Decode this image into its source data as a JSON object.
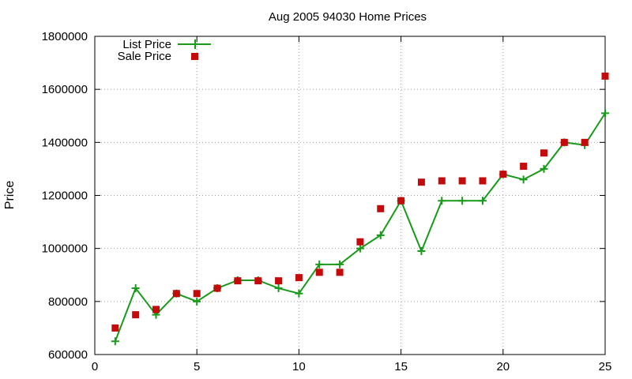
{
  "chart_data": {
    "type": "scatter",
    "title": "Aug 2005 94030 Home Prices",
    "xlabel": "",
    "ylabel": "Price",
    "xlim": [
      0,
      25
    ],
    "ylim": [
      600000,
      1800000
    ],
    "xticks": [
      0,
      5,
      10,
      15,
      20,
      25
    ],
    "yticks": [
      600000,
      800000,
      1000000,
      1200000,
      1400000,
      1600000,
      1800000
    ],
    "grid": true,
    "legend_position": "top-left",
    "series": [
      {
        "name": "List Price",
        "style": "line-with-plus-markers",
        "color": "#1a9a1a",
        "x": [
          1,
          2,
          3,
          4,
          5,
          6,
          7,
          8,
          9,
          10,
          11,
          12,
          13,
          14,
          15,
          16,
          17,
          18,
          19,
          20,
          21,
          22,
          23,
          24,
          25
        ],
        "y": [
          650000,
          850000,
          750000,
          830000,
          800000,
          850000,
          880000,
          880000,
          850000,
          830000,
          940000,
          940000,
          1000000,
          1050000,
          1180000,
          990000,
          1180000,
          1180000,
          1180000,
          1280000,
          1260000,
          1300000,
          1400000,
          1390000,
          1510000
        ]
      },
      {
        "name": "Sale Price",
        "style": "square-markers",
        "color": "#c40a0a",
        "x": [
          1,
          2,
          3,
          4,
          5,
          6,
          7,
          8,
          9,
          10,
          11,
          12,
          13,
          14,
          15,
          16,
          17,
          18,
          19,
          20,
          21,
          22,
          23,
          24,
          25
        ],
        "y": [
          700000,
          750000,
          770000,
          830000,
          830000,
          850000,
          878000,
          878000,
          878000,
          890000,
          910000,
          910000,
          1025000,
          1150000,
          1180000,
          1250000,
          1255000,
          1255000,
          1255000,
          1280000,
          1310000,
          1360000,
          1400000,
          1400000,
          1650000
        ]
      }
    ]
  }
}
